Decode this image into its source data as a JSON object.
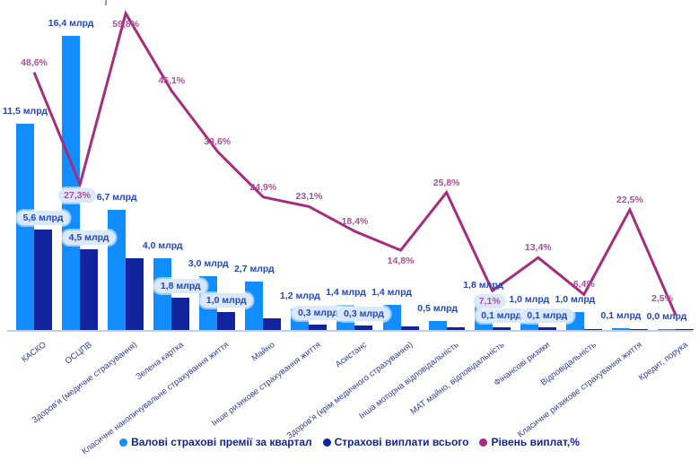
{
  "chart_data": {
    "type": "combo-bar-line",
    "categories": [
      "КАСКО",
      "ОСЦПВ",
      "Здоров'я (медичне страхування)",
      "Зелена картка",
      "Класичне накопичувальне страхування життя",
      "Майно",
      "Інше ризикове страхування життя",
      "Асистанс",
      "Здоров'я (крім медичного страхування)",
      "Інша моторна відповідальність",
      "МАТ майно, відповідальність",
      "Фінансові ризики",
      "Відповідальність",
      "Класичне ризикове страхування життя",
      "Кредит, порука"
    ],
    "series": [
      {
        "name": "Валові страхові премії за квартал",
        "type": "bar",
        "color": "#118DFF",
        "unit": "млрд",
        "values": [
          11.5,
          16.4,
          6.7,
          4.0,
          3.0,
          2.7,
          1.2,
          1.4,
          1.4,
          0.5,
          1.8,
          1.0,
          1.0,
          0.1,
          0.0
        ],
        "labels": [
          "11,5 млрд",
          "16,4 млрд",
          "6,7 млрд",
          "4,0 млрд",
          "3,0 млрд",
          "2,7 млрд",
          "1,2 млрд",
          "1,4 млрд",
          "1,4 млрд",
          "0,5 млрд",
          "1,8 млрд",
          "1,0 млрд",
          "1,0 млрд",
          "0,1 млрд",
          "0,0 млрд"
        ]
      },
      {
        "name": "Страхові виплати всього",
        "type": "bar",
        "color": "#12239E",
        "unit": "млрд",
        "values": [
          5.6,
          4.5,
          4.0,
          1.8,
          1.0,
          0.67,
          0.28,
          0.26,
          0.21,
          0.13,
          0.13,
          0.13,
          0.06,
          0.02,
          0.01
        ],
        "labels": [
          "5,6 млрд",
          "4,5 млрд",
          null,
          "1,8 млрд",
          "1,0 млрд",
          null,
          "0,3 млрд",
          "0,3 млрд",
          null,
          null,
          "0,1 млрд",
          "0,1 млрд",
          null,
          null,
          null
        ],
        "label_style": "pill"
      },
      {
        "name": "Рівень виплат,%",
        "type": "line",
        "color": "#A82C7C",
        "unit": "%",
        "values": [
          48.6,
          27.3,
          59.8,
          45.1,
          33.6,
          24.9,
          23.1,
          18.4,
          14.8,
          25.8,
          7.1,
          13.4,
          6.4,
          22.5,
          2.5
        ],
        "labels": [
          "48,6%",
          "27,3%",
          "59,8%",
          "45,1%",
          "33,6%",
          "24,9%",
          "23,1%",
          "18,4%",
          "14,8%",
          "25,8%",
          "7,1%",
          "13,4%",
          "6,4%",
          "22,5%",
          "2,5%"
        ],
        "label_placement": [
          "above",
          "below-pill",
          "below",
          "above",
          "above",
          "above",
          "above",
          "above",
          "below",
          "above",
          "below-pill",
          "above",
          "above",
          "above",
          "above-left"
        ]
      }
    ],
    "axis": {
      "baseline_visible": true,
      "grid": false
    },
    "legend": {
      "position": "bottom",
      "items": [
        {
          "label": "Валові страхові премії за квартал",
          "color": "#118DFF"
        },
        {
          "label": "Страхові виплати всього",
          "color": "#12239E"
        },
        {
          "label": "Рівень виплат,%",
          "color": "#A82C7C"
        }
      ]
    }
  }
}
